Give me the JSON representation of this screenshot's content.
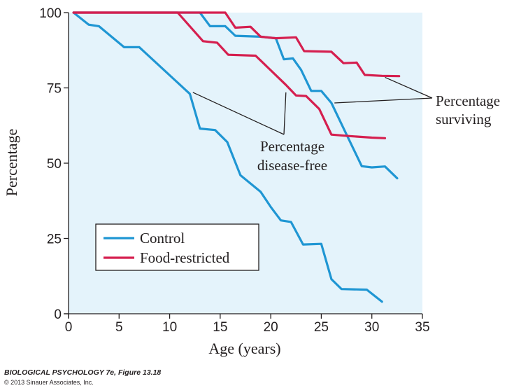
{
  "chart_data": {
    "type": "line",
    "xlabel": "Age (years)",
    "ylabel": "Percentage",
    "xlim": [
      0,
      35
    ],
    "ylim": [
      0,
      100
    ],
    "xticks": [
      0,
      5,
      10,
      15,
      20,
      25,
      30,
      35
    ],
    "yticks": [
      0,
      25,
      50,
      75,
      100
    ],
    "grid": false,
    "background": "#e4f3fb",
    "series": [
      {
        "name": "Control",
        "group": "surviving",
        "color": "#1f96d3",
        "points": [
          [
            0.5,
            100
          ],
          [
            11.5,
            100
          ],
          [
            13,
            100
          ],
          [
            14,
            95.5
          ],
          [
            15.5,
            95.5
          ],
          [
            16.5,
            92.3
          ],
          [
            19,
            92
          ],
          [
            20.5,
            91.5
          ],
          [
            21.3,
            84.5
          ],
          [
            22.2,
            84.8
          ],
          [
            23,
            81
          ],
          [
            24,
            74
          ],
          [
            25,
            74
          ],
          [
            26,
            70
          ],
          [
            27,
            63
          ],
          [
            28,
            56
          ],
          [
            29,
            49
          ],
          [
            30,
            48.6
          ],
          [
            31.3,
            48.9
          ],
          [
            32.5,
            45
          ]
        ]
      },
      {
        "name": "Food-restricted",
        "group": "surviving",
        "color": "#d51f4f",
        "points": [
          [
            0.5,
            100
          ],
          [
            15.5,
            100
          ],
          [
            16.5,
            95
          ],
          [
            18,
            95.3
          ],
          [
            19,
            92
          ],
          [
            20.5,
            91.5
          ],
          [
            22.5,
            91.8
          ],
          [
            23.3,
            87.2
          ],
          [
            26,
            87
          ],
          [
            27.2,
            83.2
          ],
          [
            28.5,
            83.4
          ],
          [
            29.3,
            79.3
          ],
          [
            31,
            79
          ],
          [
            32.7,
            78.9
          ]
        ]
      },
      {
        "name": "Control",
        "group": "disease-free",
        "color": "#1f96d3",
        "points": [
          [
            0.5,
            100
          ],
          [
            2,
            96
          ],
          [
            3,
            95.5
          ],
          [
            5.5,
            88.5
          ],
          [
            7,
            88.5
          ],
          [
            12,
            73
          ],
          [
            13,
            61.5
          ],
          [
            14.5,
            61
          ],
          [
            15.7,
            57
          ],
          [
            17,
            46
          ],
          [
            19,
            40.5
          ],
          [
            20,
            35.5
          ],
          [
            21,
            31
          ],
          [
            22,
            30.5
          ],
          [
            23.2,
            23
          ],
          [
            25,
            23.2
          ],
          [
            26,
            11.5
          ],
          [
            27,
            8.2
          ],
          [
            29.5,
            8
          ],
          [
            31,
            4
          ]
        ]
      },
      {
        "name": "Food-restricted",
        "group": "disease-free",
        "color": "#d51f4f",
        "points": [
          [
            0.5,
            100
          ],
          [
            10.8,
            100
          ],
          [
            13.3,
            90.5
          ],
          [
            14.7,
            90
          ],
          [
            15.8,
            86
          ],
          [
            18.5,
            85.7
          ],
          [
            21.5,
            76
          ],
          [
            22.5,
            72.5
          ],
          [
            23.5,
            72.3
          ],
          [
            24.8,
            68
          ],
          [
            26,
            59.5
          ],
          [
            27.8,
            59
          ],
          [
            30,
            58.5
          ],
          [
            31.3,
            58.3
          ]
        ]
      }
    ],
    "legend": {
      "placement": "lower-left",
      "entries": [
        {
          "label": "Control",
          "color": "#1f96d3"
        },
        {
          "label": "Food-restricted",
          "color": "#d51f4f"
        }
      ]
    },
    "annotations": [
      {
        "lines": [
          "Percentage",
          "surviving"
        ],
        "targets": [
          [
            31.3,
            78.5
          ],
          [
            26.3,
            70
          ]
        ]
      },
      {
        "lines": [
          "Percentage",
          "disease-free"
        ],
        "targets": [
          [
            12.3,
            73.5
          ],
          [
            21.5,
            73.5
          ]
        ]
      }
    ]
  },
  "credit": {
    "title": "BIOLOGICAL PSYCHOLOGY 7e, Figure 13.18",
    "copyright": "© 2013 Sinauer Associates, Inc."
  }
}
